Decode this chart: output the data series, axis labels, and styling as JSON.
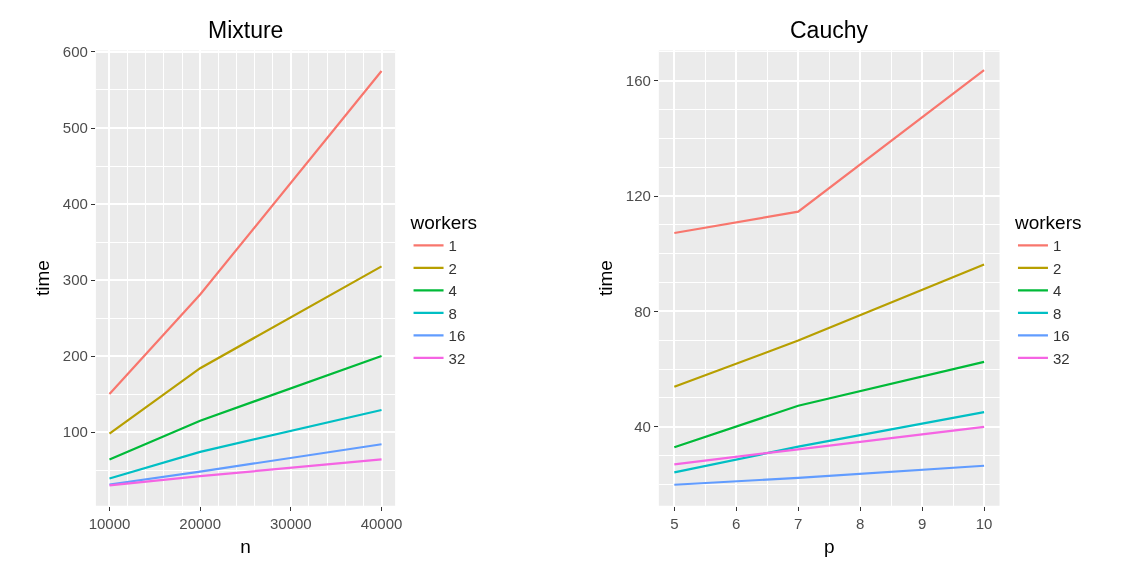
{
  "chart_data": [
    {
      "type": "line",
      "title": "Mixture",
      "xlabel": "n",
      "ylabel": "time",
      "legend_title": "workers",
      "legend": "right",
      "grid": true,
      "x": [
        10000,
        20000,
        40000
      ],
      "xlim": [
        8500,
        41500
      ],
      "xticks": [
        10000,
        20000,
        30000,
        40000
      ],
      "ylim": [
        3,
        602
      ],
      "yticks": [
        100,
        200,
        300,
        400,
        500,
        600
      ],
      "series": [
        {
          "name": "1",
          "color": "#f8766d",
          "values": [
            150,
            281,
            575
          ]
        },
        {
          "name": "2",
          "color": "#b79f00",
          "values": [
            98,
            184,
            318
          ]
        },
        {
          "name": "4",
          "color": "#00ba38",
          "values": [
            64,
            115,
            200
          ]
        },
        {
          "name": "8",
          "color": "#00bfc4",
          "values": [
            39,
            74,
            129
          ]
        },
        {
          "name": "16",
          "color": "#619cff",
          "values": [
            31,
            48,
            84
          ]
        },
        {
          "name": "32",
          "color": "#f564e3",
          "values": [
            30,
            42,
            64
          ]
        }
      ]
    },
    {
      "type": "line",
      "title": "Cauchy",
      "xlabel": "p",
      "ylabel": "time",
      "legend_title": "workers",
      "legend": "right",
      "grid": true,
      "x": [
        5,
        7,
        10
      ],
      "xlim": [
        4.75,
        10.25
      ],
      "xticks": [
        5,
        6,
        7,
        8,
        9,
        10
      ],
      "ylim": [
        12.6,
        170.5
      ],
      "yticks": [
        40,
        80,
        120,
        160
      ],
      "series": [
        {
          "name": "1",
          "color": "#f8766d",
          "values": [
            107.2,
            114.6,
            163.7
          ]
        },
        {
          "name": "2",
          "color": "#b79f00",
          "values": [
            53.9,
            69.9,
            96.3
          ]
        },
        {
          "name": "4",
          "color": "#00ba38",
          "values": [
            32.9,
            47.3,
            62.5
          ]
        },
        {
          "name": "8",
          "color": "#00bfc4",
          "values": [
            24.2,
            33.1,
            45.1
          ]
        },
        {
          "name": "16",
          "color": "#619cff",
          "values": [
            19.9,
            22.3,
            26.5
          ]
        },
        {
          "name": "32",
          "color": "#f564e3",
          "values": [
            27.0,
            32.2,
            40.0
          ]
        }
      ]
    }
  ]
}
